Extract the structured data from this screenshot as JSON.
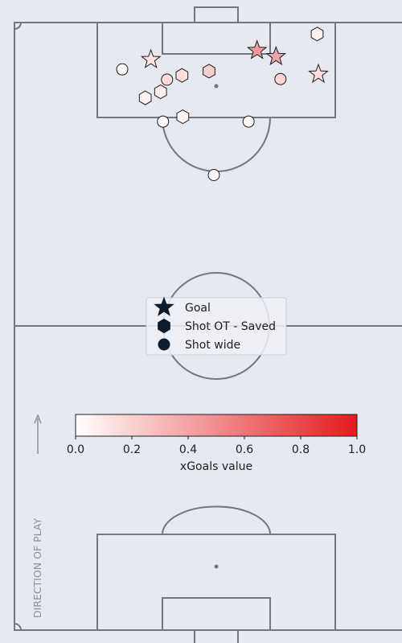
{
  "chart_data": {
    "type": "scatter",
    "subtype": "shot-map on vertical football pitch",
    "colors": {
      "background": "#e6e9f0",
      "pitch_lines": "#6f7787",
      "marker_edge": "#1e1e1e",
      "cmap_low": "#ffffff",
      "cmap_high": "#e31a1c",
      "legend_marker": "#0d1b2a",
      "direction_text": "#8a90a0"
    },
    "legend": {
      "placement": "center",
      "entries": [
        {
          "label": "Goal",
          "marker": "star"
        },
        {
          "label": "Shot OT - Saved",
          "marker": "hexagon"
        },
        {
          "label": "Shot wide",
          "marker": "circle"
        }
      ]
    },
    "colorbar": {
      "label": "xGoals value",
      "range": [
        0,
        1
      ],
      "ticks": [
        "0.0",
        "0.2",
        "0.4",
        "0.6",
        "0.8",
        "1.0"
      ]
    },
    "direction_label": "DIRECTION OF PLAY",
    "axes": {
      "x_range": [
        0,
        100
      ],
      "y_range": [
        0,
        100
      ],
      "grid": false
    },
    "shots": [
      {
        "x": 60.1,
        "y": 95.4,
        "outcome": "Goal",
        "xg": 0.45
      },
      {
        "x": 64.8,
        "y": 94.4,
        "outcome": "Goal",
        "xg": 0.4
      },
      {
        "x": 33.8,
        "y": 93.9,
        "outcome": "Goal",
        "xg": 0.12
      },
      {
        "x": 75.3,
        "y": 91.5,
        "outcome": "Goal",
        "xg": 0.14
      },
      {
        "x": 75.0,
        "y": 98.1,
        "outcome": "Shot OT - Saved",
        "xg": 0.06
      },
      {
        "x": 48.2,
        "y": 92.0,
        "outcome": "Shot OT - Saved",
        "xg": 0.22
      },
      {
        "x": 41.5,
        "y": 91.3,
        "outcome": "Shot OT - Saved",
        "xg": 0.14
      },
      {
        "x": 36.2,
        "y": 88.6,
        "outcome": "Shot OT - Saved",
        "xg": 0.08
      },
      {
        "x": 32.4,
        "y": 87.6,
        "outcome": "Shot OT - Saved",
        "xg": 0.06
      },
      {
        "x": 41.7,
        "y": 84.5,
        "outcome": "Shot OT - Saved",
        "xg": 0.05
      },
      {
        "x": 26.7,
        "y": 92.3,
        "outcome": "Shot wide",
        "xg": 0.02
      },
      {
        "x": 37.8,
        "y": 90.6,
        "outcome": "Shot wide",
        "xg": 0.15
      },
      {
        "x": 65.9,
        "y": 90.7,
        "outcome": "Shot wide",
        "xg": 0.18
      },
      {
        "x": 36.8,
        "y": 83.7,
        "outcome": "Shot wide",
        "xg": 0.03
      },
      {
        "x": 58.0,
        "y": 83.7,
        "outcome": "Shot wide",
        "xg": 0.03
      },
      {
        "x": 49.4,
        "y": 74.9,
        "outcome": "Shot wide",
        "xg": 0.03
      }
    ]
  }
}
